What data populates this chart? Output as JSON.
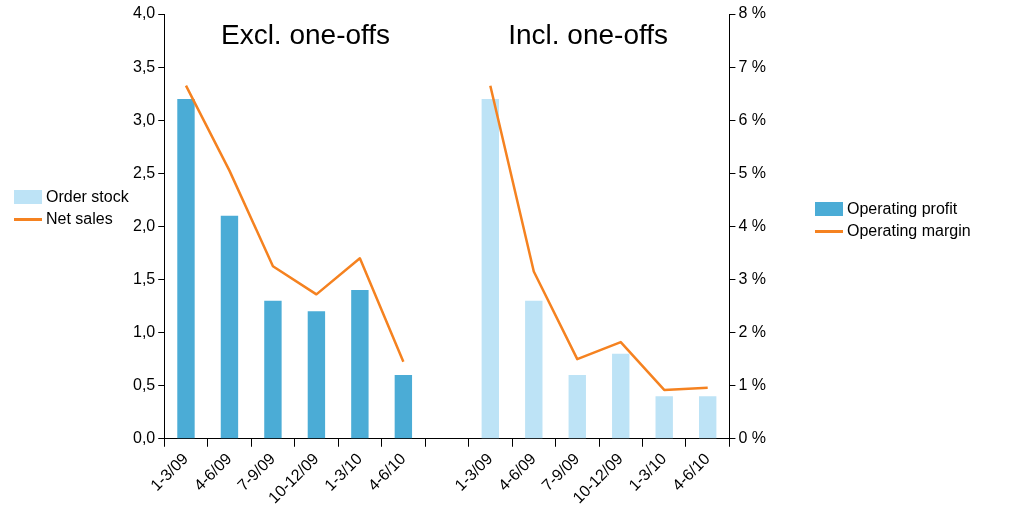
{
  "chart_data": {
    "type": "bar",
    "categories": [
      "1-3/09",
      "4-6/09",
      "7-9/09",
      "10-12/09",
      "1-3/10",
      "4-6/10",
      null,
      "1-3/09",
      "4-6/09",
      "7-9/09",
      "10-12/09",
      "1-3/10",
      "4-6/10"
    ],
    "series": [
      {
        "name": "Order stock",
        "color": "#bde3f6",
        "values": [
          null,
          null,
          null,
          null,
          null,
          null,
          null,
          3.2,
          1.3,
          0.6,
          0.8,
          0.4,
          0.4
        ]
      },
      {
        "name": "Net sales",
        "type": "line",
        "axis": "y2",
        "color": "#f58220",
        "values": [
          6.65,
          5.05,
          3.25,
          2.72,
          3.4,
          1.45,
          null,
          null,
          null,
          null,
          null,
          null,
          null
        ]
      },
      {
        "name": "Operating profit",
        "color": "#4bacd6",
        "values": [
          3.2,
          2.1,
          1.3,
          1.2,
          1.4,
          0.6,
          null,
          null,
          null,
          null,
          null,
          null,
          null
        ]
      },
      {
        "name": "Operating margin",
        "type": "line",
        "axis": "y2",
        "color": "#f58220",
        "values": [
          null,
          null,
          null,
          null,
          null,
          null,
          null,
          6.65,
          3.15,
          1.5,
          1.82,
          0.92,
          0.96
        ]
      }
    ],
    "ylim": [
      0,
      4
    ],
    "yticks": [
      {
        "value": 0,
        "label": "0,0"
      },
      {
        "value": 0.5,
        "label": "0,5"
      },
      {
        "value": 1,
        "label": "1,0"
      },
      {
        "value": 1.5,
        "label": "1,5"
      },
      {
        "value": 2,
        "label": "2,0"
      },
      {
        "value": 2.5,
        "label": "2,5"
      },
      {
        "value": 3,
        "label": "3,0"
      },
      {
        "value": 3.5,
        "label": "3,5"
      },
      {
        "value": 4,
        "label": "4,0"
      }
    ],
    "y2lim": [
      0,
      8
    ],
    "y2ticks": [
      {
        "value": 0,
        "label": "0 %"
      },
      {
        "value": 1,
        "label": "1 %"
      },
      {
        "value": 2,
        "label": "2 %"
      },
      {
        "value": 3,
        "label": "3 %"
      },
      {
        "value": 4,
        "label": "4 %"
      },
      {
        "value": 5,
        "label": "5 %"
      },
      {
        "value": 6,
        "label": "6 %"
      },
      {
        "value": 7,
        "label": "7 %"
      },
      {
        "value": 8,
        "label": "8 %"
      }
    ],
    "annotations": [
      "Excl. one-offs",
      "Incl. one-offs"
    ],
    "grid": false,
    "legend": "right",
    "marker": "none"
  }
}
